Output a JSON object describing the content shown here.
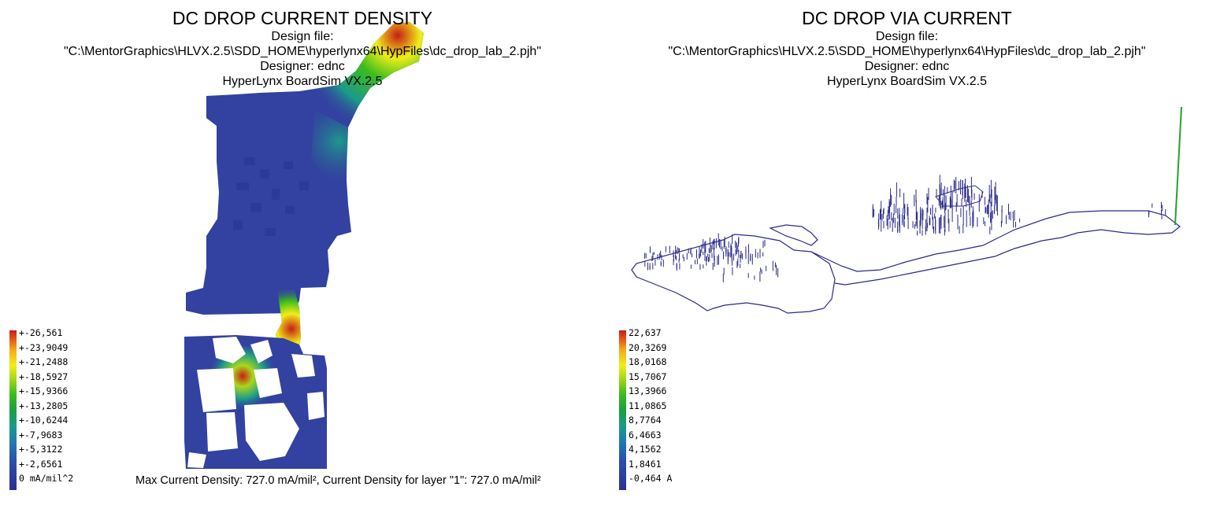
{
  "left": {
    "title": "DC DROP CURRENT DENSITY",
    "design_label": "Design file:",
    "design_path": "\"C:\\MentorGraphics\\HLVX.2.5\\SDD_HOME\\hyperlynx64\\HypFiles\\dc_drop_lab_2.pjh\"",
    "designer": "Designer: ednc",
    "tool": "HyperLynx BoardSim VX.2.5",
    "legend": [
      "+-26,561",
      "+-23,9049",
      "+-21,2488",
      "+-18,5927",
      "+-15,9366",
      "+-13,2805",
      "+-10,6244",
      "+-7,9683",
      "+-5,3122",
      "+-2,6561",
      "0 mA/mil^2"
    ],
    "footer": "Max Current Density: 727.0 mA/mil², Current Density for layer \"1\": 727.0 mA/mil²"
  },
  "right": {
    "title": "DC DROP VIA CURRENT",
    "design_label": "Design file:",
    "design_path": "\"C:\\MentorGraphics\\HLVX.2.5\\SDD_HOME\\hyperlynx64\\HypFiles\\dc_drop_lab_2.pjh\"",
    "designer": "Designer: ednc",
    "tool": "HyperLynx BoardSim VX.2.5",
    "legend": [
      "22,637",
      "20,3269",
      "18,0168",
      "15,7067",
      "13,3966",
      "11,0865",
      "8,7764",
      "6,4663",
      "4,1562",
      "1,8461",
      "-0,464 A"
    ]
  },
  "colors": {
    "outline": "#2a2a8a",
    "plane_base": "#3341a0",
    "scale": [
      "#2b2f94",
      "#2a4ea8",
      "#1f7bb0",
      "#1c9a8a",
      "#19a040",
      "#3cbc1c",
      "#a8d81a",
      "#f0ee18",
      "#f4a818",
      "#e85a14",
      "#c81e16"
    ]
  }
}
